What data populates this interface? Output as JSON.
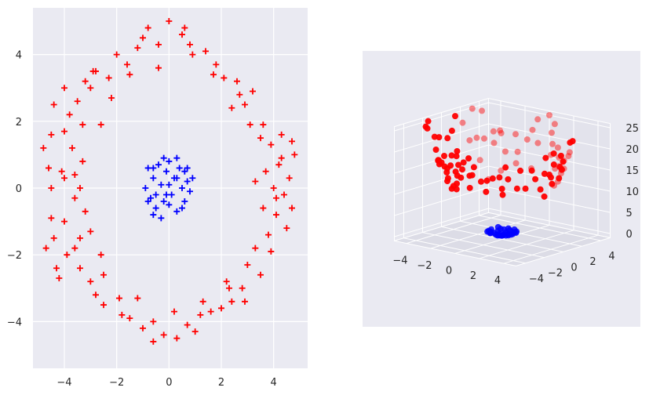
{
  "chart_data": [
    {
      "type": "scatter",
      "panel": "left-2d",
      "title": "",
      "xlabel": "",
      "ylabel": "",
      "xlim": [
        -5.2,
        5.3
      ],
      "ylim": [
        -5.4,
        5.4
      ],
      "xticks": [
        -4,
        -2,
        0,
        2,
        4
      ],
      "yticks": [
        -4,
        -2,
        0,
        2,
        4
      ],
      "xtick_labels": [
        "−4",
        "−2",
        "0",
        "2",
        "4"
      ],
      "ytick_labels": [
        "−4",
        "−2",
        "0",
        "2",
        "4"
      ],
      "grid": true,
      "marker": "+",
      "series": [
        {
          "color": "#ff0000",
          "points": [
            [
              -4.8,
              1.2
            ],
            [
              -4.6,
              0.6
            ],
            [
              -4.5,
              1.6
            ],
            [
              -4.5,
              0.0
            ],
            [
              -4.4,
              2.5
            ],
            [
              -4.5,
              -0.9
            ],
            [
              -4.4,
              -1.5
            ],
            [
              -4.3,
              -2.4
            ],
            [
              -4.0,
              3.0
            ],
            [
              -4.0,
              1.7
            ],
            [
              -4.0,
              0.3
            ],
            [
              -4.0,
              -1.0
            ],
            [
              -3.9,
              -2.0
            ],
            [
              -3.7,
              1.2
            ],
            [
              -3.6,
              0.4
            ],
            [
              -3.6,
              -0.3
            ],
            [
              -3.5,
              2.6
            ],
            [
              -3.4,
              -1.5
            ],
            [
              -3.4,
              -2.4
            ],
            [
              -3.3,
              1.9
            ],
            [
              -3.3,
              0.8
            ],
            [
              -3.2,
              -0.7
            ],
            [
              -3.0,
              3.0
            ],
            [
              -3.0,
              -1.3
            ],
            [
              -3.0,
              -2.8
            ],
            [
              -2.8,
              3.5
            ],
            [
              -2.6,
              1.9
            ],
            [
              -2.6,
              -2.0
            ],
            [
              -2.5,
              -3.5
            ],
            [
              -2.3,
              3.3
            ],
            [
              -2.0,
              4.0
            ],
            [
              -1.9,
              -3.3
            ],
            [
              -1.6,
              3.7
            ],
            [
              -1.5,
              -3.9
            ],
            [
              -1.2,
              4.2
            ],
            [
              -1.0,
              -4.2
            ],
            [
              -0.8,
              4.8
            ],
            [
              -0.6,
              -4.0
            ],
            [
              -0.4,
              4.3
            ],
            [
              -0.2,
              -4.4
            ],
            [
              0.0,
              5.0
            ],
            [
              0.3,
              -4.5
            ],
            [
              0.5,
              4.6
            ],
            [
              0.7,
              -4.1
            ],
            [
              0.9,
              4.0
            ],
            [
              1.2,
              -3.8
            ],
            [
              1.4,
              4.1
            ],
            [
              1.6,
              -3.7
            ],
            [
              1.8,
              3.7
            ],
            [
              2.0,
              -3.6
            ],
            [
              2.1,
              3.3
            ],
            [
              2.4,
              -3.4
            ],
            [
              2.6,
              3.2
            ],
            [
              2.8,
              -3.0
            ],
            [
              2.9,
              2.5
            ],
            [
              3.0,
              -2.3
            ],
            [
              3.1,
              1.9
            ],
            [
              3.3,
              -1.8
            ],
            [
              3.5,
              1.5
            ],
            [
              3.6,
              -0.6
            ],
            [
              3.7,
              0.5
            ],
            [
              3.8,
              -1.4
            ],
            [
              3.9,
              1.3
            ],
            [
              4.0,
              0.0
            ],
            [
              4.1,
              -0.8
            ],
            [
              4.2,
              0.7
            ],
            [
              4.3,
              1.6
            ],
            [
              4.4,
              -0.2
            ],
            [
              4.5,
              -1.2
            ],
            [
              4.6,
              0.3
            ],
            [
              4.7,
              -0.6
            ],
            [
              4.8,
              1.0
            ],
            [
              -4.2,
              -2.7
            ],
            [
              -3.8,
              2.2
            ],
            [
              -2.8,
              -3.2
            ],
            [
              -1.0,
              4.5
            ],
            [
              1.0,
              -4.3
            ],
            [
              2.7,
              2.8
            ],
            [
              3.5,
              -2.6
            ],
            [
              4.3,
              0.9
            ],
            [
              -3.2,
              3.2
            ],
            [
              -1.8,
              -3.8
            ],
            [
              0.8,
              4.3
            ],
            [
              2.3,
              -3.0
            ],
            [
              3.2,
              2.9
            ],
            [
              3.9,
              -1.9
            ],
            [
              -2.2,
              2.7
            ],
            [
              -2.5,
              -2.6
            ],
            [
              2.4,
              2.4
            ],
            [
              2.2,
              -2.8
            ],
            [
              -3.4,
              0.0
            ],
            [
              3.3,
              0.2
            ],
            [
              -0.4,
              3.6
            ],
            [
              0.2,
              -3.7
            ],
            [
              -1.5,
              3.4
            ],
            [
              1.3,
              -3.4
            ],
            [
              1.7,
              3.4
            ],
            [
              -1.2,
              -3.3
            ],
            [
              -4.1,
              0.5
            ],
            [
              4.1,
              -0.3
            ],
            [
              -3.6,
              -1.8
            ],
            [
              3.6,
              1.9
            ],
            [
              -2.9,
              3.5
            ],
            [
              2.9,
              -3.4
            ],
            [
              -0.6,
              -4.6
            ],
            [
              0.6,
              4.8
            ],
            [
              -4.7,
              -1.8
            ],
            [
              4.7,
              1.4
            ]
          ]
        },
        {
          "color": "#0000ff",
          "points": [
            [
              -0.9,
              0.0
            ],
            [
              -0.8,
              0.6
            ],
            [
              -0.7,
              -0.3
            ],
            [
              -0.6,
              0.3
            ],
            [
              -0.5,
              -0.6
            ],
            [
              -0.4,
              0.7
            ],
            [
              -0.3,
              0.1
            ],
            [
              -0.2,
              -0.4
            ],
            [
              -0.1,
              0.5
            ],
            [
              0.0,
              0.8
            ],
            [
              0.1,
              -0.2
            ],
            [
              0.2,
              0.3
            ],
            [
              0.3,
              -0.7
            ],
            [
              0.4,
              0.6
            ],
            [
              0.5,
              0.0
            ],
            [
              0.6,
              -0.4
            ],
            [
              0.7,
              0.2
            ],
            [
              0.8,
              -0.1
            ],
            [
              0.9,
              0.3
            ],
            [
              -0.5,
              -0.2
            ],
            [
              0.0,
              -0.5
            ],
            [
              0.3,
              0.9
            ],
            [
              -0.2,
              0.9
            ],
            [
              -0.6,
              -0.8
            ],
            [
              0.5,
              -0.6
            ],
            [
              0.7,
              0.6
            ],
            [
              -0.8,
              -0.4
            ],
            [
              0.0,
              0.1
            ],
            [
              -0.3,
              -0.9
            ],
            [
              0.3,
              0.3
            ],
            [
              -0.1,
              -0.2
            ],
            [
              0.6,
              0.5
            ],
            [
              -0.6,
              0.6
            ]
          ]
        }
      ]
    },
    {
      "type": "scatter",
      "panel": "right-3d",
      "title": "",
      "xlabel": "",
      "ylabel": "",
      "zlabel": "",
      "xlim": [
        -5,
        5
      ],
      "ylim": [
        -5,
        5
      ],
      "zlim": [
        -1,
        26
      ],
      "xticks": [
        -4,
        -2,
        0,
        2,
        4
      ],
      "yticks": [
        -4,
        -2,
        0,
        2,
        4
      ],
      "zticks": [
        0,
        5,
        10,
        15,
        20,
        25
      ],
      "xtick_labels": [
        "−4",
        "−2",
        "0",
        "2",
        "4"
      ],
      "ytick_labels": [
        "−4",
        "−2",
        "0",
        "2",
        "4"
      ],
      "ztick_labels": [
        "0",
        "5",
        "10",
        "15",
        "20",
        "25"
      ],
      "grid": true,
      "marker": "o",
      "series": [
        {
          "color": "#ff0000",
          "description_source": "z = x^2 + y^2 of the outer ring points"
        },
        {
          "color": "#0000ff",
          "description_source": "z = x^2 + y^2 of the inner cluster points"
        }
      ]
    }
  ]
}
